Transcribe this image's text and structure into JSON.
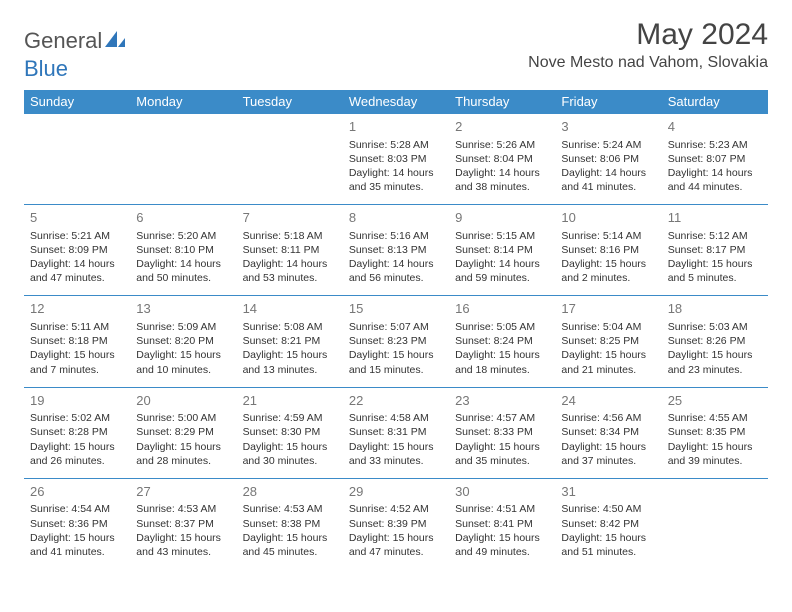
{
  "logo": {
    "text1": "General",
    "text2": "Blue"
  },
  "title": "May 2024",
  "location": "Nove Mesto nad Vahom, Slovakia",
  "header_bg": "#3b8bc8",
  "header_fg": "#ffffff",
  "rule_color": "#3b8bc8",
  "daynames": [
    "Sunday",
    "Monday",
    "Tuesday",
    "Wednesday",
    "Thursday",
    "Friday",
    "Saturday"
  ],
  "weeks": [
    [
      null,
      null,
      null,
      {
        "n": "1",
        "sr": "5:28 AM",
        "ss": "8:03 PM",
        "dl": "14 hours and 35 minutes."
      },
      {
        "n": "2",
        "sr": "5:26 AM",
        "ss": "8:04 PM",
        "dl": "14 hours and 38 minutes."
      },
      {
        "n": "3",
        "sr": "5:24 AM",
        "ss": "8:06 PM",
        "dl": "14 hours and 41 minutes."
      },
      {
        "n": "4",
        "sr": "5:23 AM",
        "ss": "8:07 PM",
        "dl": "14 hours and 44 minutes."
      }
    ],
    [
      {
        "n": "5",
        "sr": "5:21 AM",
        "ss": "8:09 PM",
        "dl": "14 hours and 47 minutes."
      },
      {
        "n": "6",
        "sr": "5:20 AM",
        "ss": "8:10 PM",
        "dl": "14 hours and 50 minutes."
      },
      {
        "n": "7",
        "sr": "5:18 AM",
        "ss": "8:11 PM",
        "dl": "14 hours and 53 minutes."
      },
      {
        "n": "8",
        "sr": "5:16 AM",
        "ss": "8:13 PM",
        "dl": "14 hours and 56 minutes."
      },
      {
        "n": "9",
        "sr": "5:15 AM",
        "ss": "8:14 PM",
        "dl": "14 hours and 59 minutes."
      },
      {
        "n": "10",
        "sr": "5:14 AM",
        "ss": "8:16 PM",
        "dl": "15 hours and 2 minutes."
      },
      {
        "n": "11",
        "sr": "5:12 AM",
        "ss": "8:17 PM",
        "dl": "15 hours and 5 minutes."
      }
    ],
    [
      {
        "n": "12",
        "sr": "5:11 AM",
        "ss": "8:18 PM",
        "dl": "15 hours and 7 minutes."
      },
      {
        "n": "13",
        "sr": "5:09 AM",
        "ss": "8:20 PM",
        "dl": "15 hours and 10 minutes."
      },
      {
        "n": "14",
        "sr": "5:08 AM",
        "ss": "8:21 PM",
        "dl": "15 hours and 13 minutes."
      },
      {
        "n": "15",
        "sr": "5:07 AM",
        "ss": "8:23 PM",
        "dl": "15 hours and 15 minutes."
      },
      {
        "n": "16",
        "sr": "5:05 AM",
        "ss": "8:24 PM",
        "dl": "15 hours and 18 minutes."
      },
      {
        "n": "17",
        "sr": "5:04 AM",
        "ss": "8:25 PM",
        "dl": "15 hours and 21 minutes."
      },
      {
        "n": "18",
        "sr": "5:03 AM",
        "ss": "8:26 PM",
        "dl": "15 hours and 23 minutes."
      }
    ],
    [
      {
        "n": "19",
        "sr": "5:02 AM",
        "ss": "8:28 PM",
        "dl": "15 hours and 26 minutes."
      },
      {
        "n": "20",
        "sr": "5:00 AM",
        "ss": "8:29 PM",
        "dl": "15 hours and 28 minutes."
      },
      {
        "n": "21",
        "sr": "4:59 AM",
        "ss": "8:30 PM",
        "dl": "15 hours and 30 minutes."
      },
      {
        "n": "22",
        "sr": "4:58 AM",
        "ss": "8:31 PM",
        "dl": "15 hours and 33 minutes."
      },
      {
        "n": "23",
        "sr": "4:57 AM",
        "ss": "8:33 PM",
        "dl": "15 hours and 35 minutes."
      },
      {
        "n": "24",
        "sr": "4:56 AM",
        "ss": "8:34 PM",
        "dl": "15 hours and 37 minutes."
      },
      {
        "n": "25",
        "sr": "4:55 AM",
        "ss": "8:35 PM",
        "dl": "15 hours and 39 minutes."
      }
    ],
    [
      {
        "n": "26",
        "sr": "4:54 AM",
        "ss": "8:36 PM",
        "dl": "15 hours and 41 minutes."
      },
      {
        "n": "27",
        "sr": "4:53 AM",
        "ss": "8:37 PM",
        "dl": "15 hours and 43 minutes."
      },
      {
        "n": "28",
        "sr": "4:53 AM",
        "ss": "8:38 PM",
        "dl": "15 hours and 45 minutes."
      },
      {
        "n": "29",
        "sr": "4:52 AM",
        "ss": "8:39 PM",
        "dl": "15 hours and 47 minutes."
      },
      {
        "n": "30",
        "sr": "4:51 AM",
        "ss": "8:41 PM",
        "dl": "15 hours and 49 minutes."
      },
      {
        "n": "31",
        "sr": "4:50 AM",
        "ss": "8:42 PM",
        "dl": "15 hours and 51 minutes."
      },
      null
    ]
  ],
  "labels": {
    "sunrise": "Sunrise: ",
    "sunset": "Sunset: ",
    "daylight": "Daylight: "
  }
}
